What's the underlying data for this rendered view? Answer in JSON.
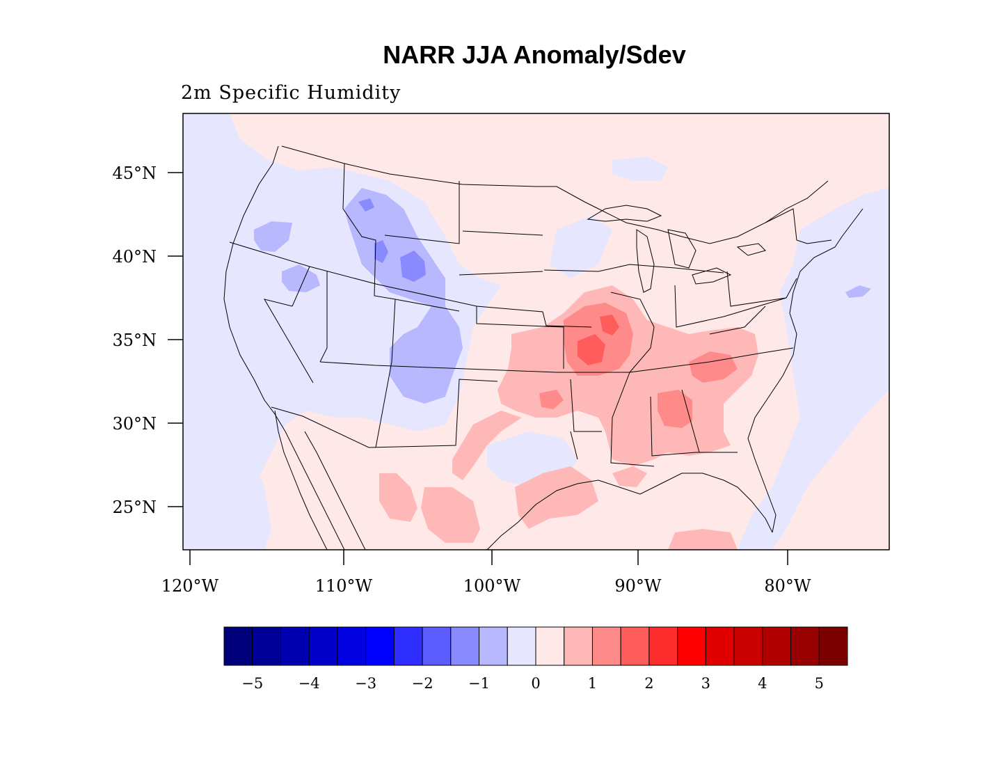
{
  "title": "NARR JJA Anomaly/Sdev",
  "subtitle": "2m Specific Humidity",
  "lat_labels": [
    "45°N",
    "40°N",
    "35°N",
    "30°N",
    "25°N"
  ],
  "lon_labels": [
    "120°W",
    "110°W",
    "100°W",
    "90°W",
    "80°W"
  ],
  "colorbar": {
    "colors": [
      "#00007a",
      "#000096",
      "#0000b0",
      "#0000c8",
      "#0000e0",
      "#0000ff",
      "#2e2eff",
      "#5c5cff",
      "#8a8aff",
      "#b8b8ff",
      "#e6e6ff",
      "#ffe8e8",
      "#ffb8b8",
      "#ff8a8a",
      "#ff5c5c",
      "#ff2e2e",
      "#ff0000",
      "#e00000",
      "#c80000",
      "#b00000",
      "#960000",
      "#7a0000"
    ],
    "labels": [
      "−5",
      "−4",
      "−3",
      "−2",
      "−1",
      "0",
      "1",
      "2",
      "3",
      "4",
      "5"
    ]
  },
  "colors": {
    "background_positive": "#ffe8e8",
    "background_negative": "#e6e6ff"
  }
}
